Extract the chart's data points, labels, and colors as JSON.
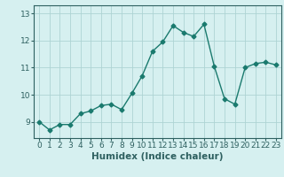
{
  "title": "",
  "xlabel": "Humidex (Indice chaleur)",
  "ylabel": "",
  "x_values": [
    0,
    1,
    2,
    3,
    4,
    5,
    6,
    7,
    8,
    9,
    10,
    11,
    12,
    13,
    14,
    15,
    16,
    17,
    18,
    19,
    20,
    21,
    22,
    23
  ],
  "y_values": [
    9.0,
    8.7,
    8.9,
    8.9,
    9.3,
    9.4,
    9.6,
    9.65,
    9.45,
    10.05,
    10.7,
    11.6,
    11.95,
    12.55,
    12.3,
    12.15,
    12.6,
    11.05,
    9.85,
    9.65,
    11.0,
    11.15,
    11.2,
    11.1
  ],
  "line_color": "#1a7a6e",
  "marker": "D",
  "marker_size": 2.5,
  "bg_color": "#d6f0f0",
  "grid_color": "#aed4d4",
  "axis_color": "#2e6060",
  "ylim_min": 8.4,
  "ylim_max": 13.3,
  "xlim_min": -0.5,
  "xlim_max": 23.5,
  "yticks": [
    9,
    10,
    11,
    12,
    13
  ],
  "xticks": [
    0,
    1,
    2,
    3,
    4,
    5,
    6,
    7,
    8,
    9,
    10,
    11,
    12,
    13,
    14,
    15,
    16,
    17,
    18,
    19,
    20,
    21,
    22,
    23
  ],
  "tick_fontsize": 6.5,
  "label_fontsize": 7.5,
  "linewidth": 1.0
}
